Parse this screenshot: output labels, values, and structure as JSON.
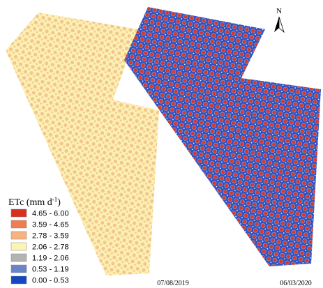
{
  "north_label": "N",
  "legend": {
    "title": {
      "main": "ETc (mm d",
      "superscript": "-1",
      "end": ")"
    },
    "items": [
      {
        "label": "4.65 - 6.00",
        "color": "#d7301f"
      },
      {
        "label": "3.59 - 4.65",
        "color": "#ee7d52"
      },
      {
        "label": "2.78 - 3.59",
        "color": "#f6b27f"
      },
      {
        "label": "2.06 - 2.78",
        "color": "#fcf5b2"
      },
      {
        "label": "1.19 - 2.06",
        "color": "#b3b3b3"
      },
      {
        "label": "0.53 - 1.19",
        "color": "#6a84c8"
      },
      {
        "label": "0.00 - 0.53",
        "color": "#1447c0"
      }
    ]
  },
  "maps": [
    {
      "date": "07/08/2019"
    },
    {
      "date": "06/03/2020"
    }
  ]
}
